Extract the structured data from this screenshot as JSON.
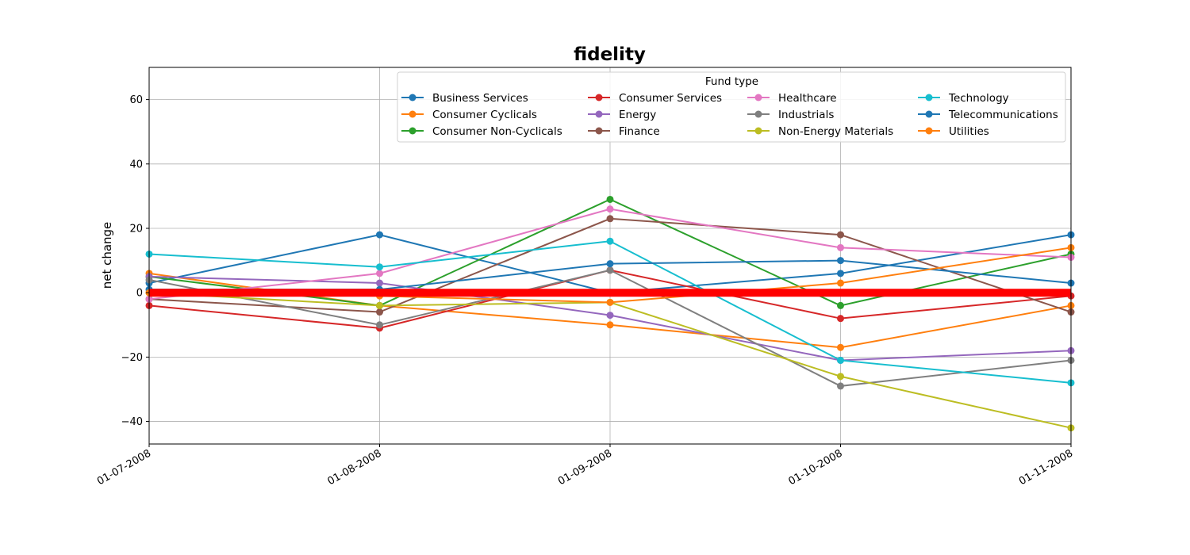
{
  "chart_data": {
    "type": "line",
    "title": "fidelity",
    "xlabel": "",
    "ylabel": "net change",
    "x": [
      "01-07-2008",
      "01-08-2008",
      "01-09-2008",
      "01-10-2008",
      "01-11-2008"
    ],
    "ylim": [
      -47,
      70
    ],
    "yticks": [
      -40,
      -20,
      0,
      20,
      40,
      60
    ],
    "ytick_labels": [
      "−40",
      "−20",
      "0",
      "20",
      "40",
      "60"
    ],
    "grid": true,
    "legend": {
      "title": "Fund type",
      "placement": "top-right",
      "columns": 4
    },
    "zero_line": {
      "value": 0,
      "color": "#ff0000"
    },
    "series": [
      {
        "name": "Business Services",
        "color": "#1f77b4",
        "values": [
          3,
          18,
          0,
          6,
          18
        ]
      },
      {
        "name": "Consumer Cyclicals",
        "color": "#ff7f0e",
        "values": [
          6,
          -4,
          -10,
          -17,
          -4
        ]
      },
      {
        "name": "Consumer Non-Cyclicals",
        "color": "#2ca02c",
        "values": [
          5,
          -4,
          29,
          -4,
          12
        ]
      },
      {
        "name": "Consumer Services",
        "color": "#d62728",
        "values": [
          -4,
          -11,
          7,
          -8,
          -1
        ]
      },
      {
        "name": "Energy",
        "color": "#9467bd",
        "values": [
          5,
          3,
          -7,
          -21,
          -18
        ]
      },
      {
        "name": "Finance",
        "color": "#8c564b",
        "values": [
          -2,
          -6,
          23,
          18,
          -6
        ]
      },
      {
        "name": "Healthcare",
        "color": "#e377c2",
        "values": [
          -2,
          6,
          26,
          14,
          11
        ]
      },
      {
        "name": "Industrials",
        "color": "#7f7f7f",
        "values": [
          4,
          -10,
          7,
          -29,
          -21
        ]
      },
      {
        "name": "Non-Energy Materials",
        "color": "#bcbd22",
        "values": [
          0,
          -4,
          -3,
          -26,
          -42
        ]
      },
      {
        "name": "Technology",
        "color": "#17becf",
        "values": [
          12,
          8,
          16,
          -21,
          -28
        ]
      },
      {
        "name": "Telecommunications",
        "color": "#1f77b4",
        "values": [
          1,
          1,
          9,
          10,
          3
        ]
      },
      {
        "name": "Utilities",
        "color": "#ff7f0e",
        "values": [
          0,
          -1,
          -3,
          3,
          14
        ]
      }
    ]
  }
}
